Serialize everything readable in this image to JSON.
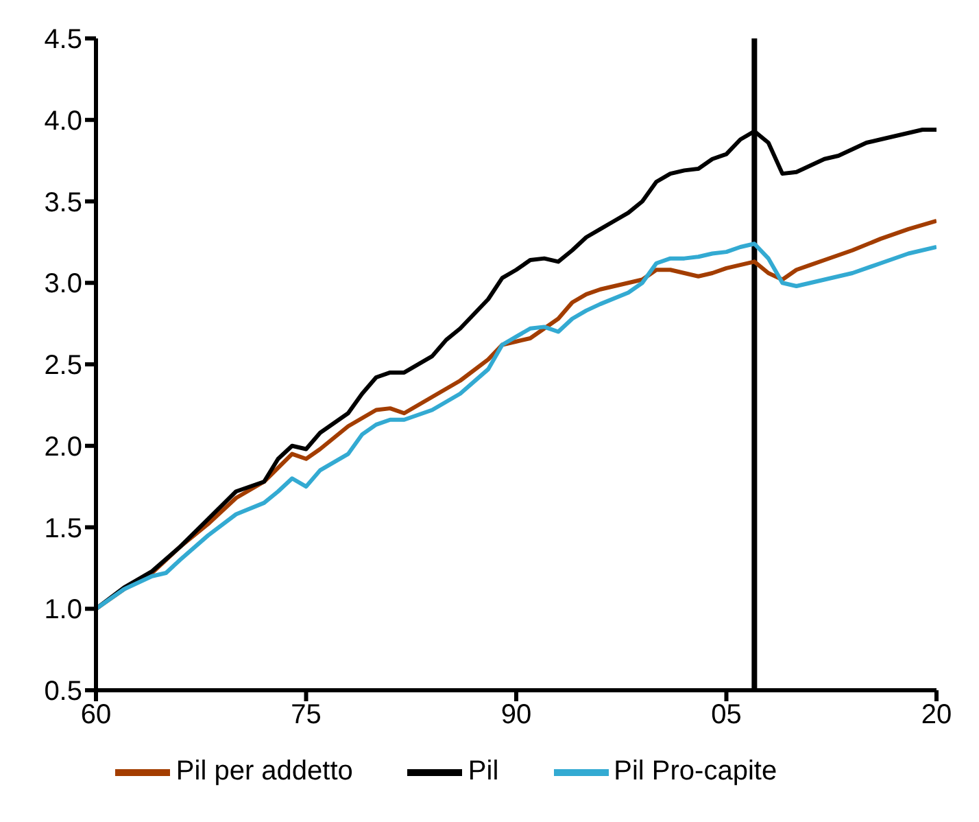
{
  "chart_data": {
    "type": "line",
    "xlim": [
      1960,
      2020
    ],
    "xticks": [
      {
        "value": 1960,
        "label": "60"
      },
      {
        "value": 1975,
        "label": "75"
      },
      {
        "value": 1990,
        "label": "90"
      },
      {
        "value": 2005,
        "label": "05"
      },
      {
        "value": 2020,
        "label": "20"
      }
    ],
    "ylim": [
      0.5,
      4.5
    ],
    "yticks": [
      0.5,
      {
        "value": 1,
        "label": "1.0"
      },
      1.5,
      {
        "value": 2,
        "label": "2.0"
      },
      2.5,
      {
        "value": 3,
        "label": "3.0"
      },
      3.5,
      {
        "value": 4,
        "label": "4.0"
      },
      4.5
    ],
    "grid": false,
    "legend": "bottom",
    "marker": "none",
    "line_style": "solid",
    "ref_lines": [
      {
        "axis": "x",
        "value": 2007,
        "color": "#000000"
      }
    ],
    "series": [
      {
        "name": "Pil per addetto",
        "color": "#a33d00",
        "x": [
          1960,
          1962,
          1964,
          1966,
          1968,
          1970,
          1972,
          1974,
          1975,
          1976,
          1978,
          1980,
          1981,
          1982,
          1984,
          1986,
          1988,
          1989,
          1990,
          1991,
          1992,
          1993,
          1994,
          1995,
          1996,
          1998,
          1999,
          2000,
          2001,
          2002,
          2003,
          2004,
          2005,
          2006,
          2007,
          2008,
          2009,
          2010,
          2011,
          2012,
          2014,
          2016,
          2018,
          2020
        ],
        "values": [
          1.0,
          1.12,
          1.22,
          1.38,
          1.52,
          1.68,
          1.78,
          1.95,
          1.92,
          1.98,
          2.12,
          2.22,
          2.23,
          2.2,
          2.3,
          2.4,
          2.53,
          2.62,
          2.64,
          2.66,
          2.72,
          2.78,
          2.88,
          2.93,
          2.96,
          3.0,
          3.02,
          3.08,
          3.08,
          3.06,
          3.04,
          3.06,
          3.09,
          3.11,
          3.13,
          3.06,
          3.02,
          3.08,
          3.11,
          3.14,
          3.2,
          3.27,
          3.33,
          3.38
        ]
      },
      {
        "name": "Pil",
        "color": "#000000",
        "x": [
          1960,
          1962,
          1964,
          1966,
          1968,
          1970,
          1972,
          1973,
          1974,
          1975,
          1976,
          1978,
          1979,
          1980,
          1981,
          1982,
          1984,
          1985,
          1986,
          1988,
          1989,
          1990,
          1991,
          1992,
          1993,
          1994,
          1995,
          1996,
          1997,
          1998,
          1999,
          2000,
          2001,
          2002,
          2003,
          2004,
          2005,
          2006,
          2007,
          2008,
          2009,
          2010,
          2011,
          2012,
          2013,
          2014,
          2015,
          2016,
          2017,
          2018,
          2019,
          2020
        ],
        "values": [
          1.0,
          1.13,
          1.23,
          1.38,
          1.55,
          1.72,
          1.78,
          1.92,
          2.0,
          1.98,
          2.08,
          2.2,
          2.32,
          2.42,
          2.45,
          2.45,
          2.55,
          2.65,
          2.72,
          2.9,
          3.03,
          3.08,
          3.14,
          3.15,
          3.13,
          3.2,
          3.28,
          3.33,
          3.38,
          3.43,
          3.5,
          3.62,
          3.67,
          3.69,
          3.7,
          3.76,
          3.79,
          3.88,
          3.93,
          3.86,
          3.67,
          3.68,
          3.72,
          3.76,
          3.78,
          3.82,
          3.86,
          3.88,
          3.9,
          3.92,
          3.94,
          3.94
        ]
      },
      {
        "name": "Pil Pro-capite",
        "color": "#33aad2",
        "x": [
          1960,
          1962,
          1964,
          1965,
          1966,
          1968,
          1970,
          1972,
          1973,
          1974,
          1975,
          1976,
          1978,
          1979,
          1980,
          1981,
          1982,
          1984,
          1986,
          1988,
          1989,
          1990,
          1991,
          1992,
          1993,
          1994,
          1995,
          1996,
          1998,
          1999,
          2000,
          2001,
          2002,
          2003,
          2004,
          2005,
          2006,
          2007,
          2008,
          2009,
          2010,
          2011,
          2012,
          2014,
          2016,
          2018,
          2020
        ],
        "values": [
          1.0,
          1.12,
          1.2,
          1.22,
          1.3,
          1.45,
          1.58,
          1.65,
          1.72,
          1.8,
          1.75,
          1.85,
          1.95,
          2.07,
          2.13,
          2.16,
          2.16,
          2.22,
          2.32,
          2.47,
          2.62,
          2.67,
          2.72,
          2.73,
          2.7,
          2.78,
          2.83,
          2.87,
          2.94,
          3.0,
          3.12,
          3.15,
          3.15,
          3.16,
          3.18,
          3.19,
          3.22,
          3.24,
          3.15,
          3.0,
          2.98,
          3.0,
          3.02,
          3.06,
          3.12,
          3.18,
          3.22
        ]
      }
    ]
  }
}
